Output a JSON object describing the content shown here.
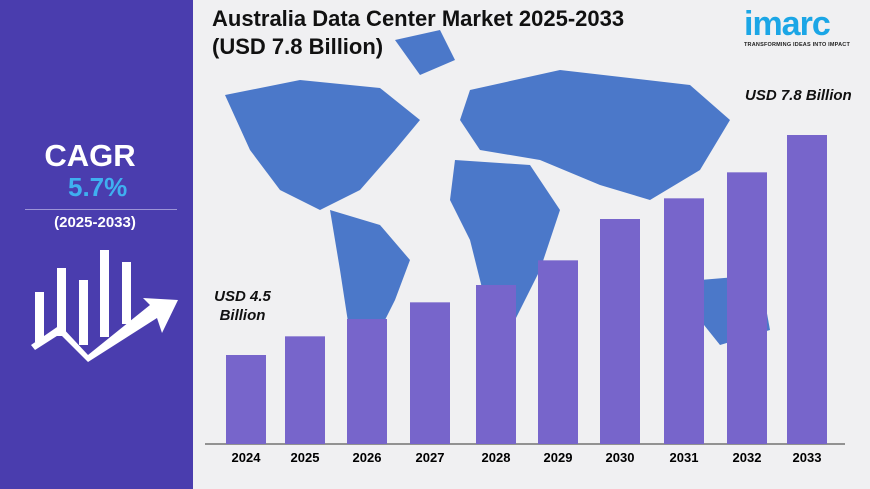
{
  "title_line1": "Australia Data Center Market 2025-2033",
  "title_line2": "(USD 7.8 Billion)",
  "logo": {
    "wordmark": "imarc",
    "tagline": "TRANSFORMING IDEAS INTO IMPACT"
  },
  "sidebar": {
    "cagr_label": "CAGR",
    "cagr_value": "5.7%",
    "period": "(2025-2033)",
    "icon": "growth-chart-arrow-icon"
  },
  "colors": {
    "sidebar": "#4a3dae",
    "bars": "#7765cb",
    "map": "#4b78c9",
    "cagr_value": "#3fb0f0"
  },
  "chart_data": {
    "type": "bar",
    "categories": [
      "2024",
      "2025",
      "2026",
      "2027",
      "2028",
      "2029",
      "2030",
      "2031",
      "2032",
      "2033"
    ],
    "values": [
      4.5,
      4.78,
      5.04,
      5.29,
      5.55,
      5.92,
      6.54,
      6.85,
      7.24,
      7.8
    ],
    "unit": "USD Billion",
    "annotations": {
      "first": "USD 4.5 Billion",
      "last": "USD 7.8 Billion"
    },
    "first_label_lines": [
      "USD 4.5",
      "Billion"
    ],
    "grid": false
  }
}
